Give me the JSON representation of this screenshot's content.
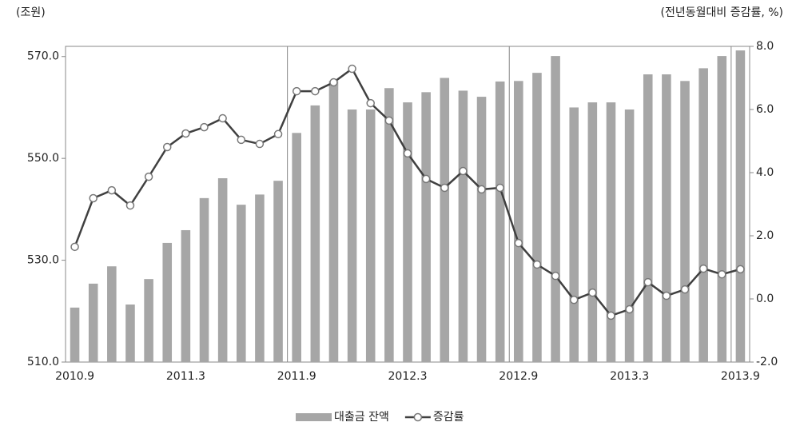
{
  "chart_data": {
    "type": "bar_line",
    "y_unit_label": "(조원)",
    "y2_unit_label": "(전년동월대비 증감률,  %)",
    "categories": [
      "2010.9",
      null,
      null,
      null,
      null,
      null,
      "2011.3",
      null,
      null,
      null,
      null,
      null,
      "2011.9",
      null,
      null,
      null,
      null,
      null,
      "2012.3",
      null,
      null,
      null,
      null,
      null,
      "2012.9",
      null,
      null,
      null,
      null,
      null,
      "2013.3",
      null,
      null,
      null,
      null,
      null,
      "2013.9"
    ],
    "series": [
      {
        "name": "대출금 잔액",
        "type": "bar",
        "color": "#a6a6a6",
        "axis": "y",
        "values": [
          520.7,
          525.4,
          528.8,
          521.3,
          526.3,
          533.4,
          535.9,
          542.2,
          546.1,
          540.9,
          542.9,
          545.6,
          555.0,
          560.4,
          565.2,
          559.6,
          559.6,
          563.8,
          561.0,
          563.0,
          565.8,
          563.3,
          562.1,
          565.1,
          565.2,
          566.8,
          570.1,
          560.0,
          561.0,
          561.0,
          559.6,
          566.5,
          566.5,
          565.2,
          567.7,
          570.1,
          571.2
        ]
      },
      {
        "name": "증감률",
        "type": "line",
        "color": "#404040",
        "axis": "y2",
        "values": [
          1.65,
          3.19,
          3.44,
          2.96,
          3.87,
          4.81,
          5.24,
          5.44,
          5.72,
          5.04,
          4.91,
          5.22,
          6.58,
          6.58,
          6.86,
          7.29,
          6.2,
          5.65,
          4.61,
          3.8,
          3.52,
          4.05,
          3.47,
          3.52,
          1.77,
          1.09,
          0.73,
          -0.03,
          0.2,
          -0.53,
          -0.33,
          0.53,
          0.1,
          0.3,
          0.96,
          0.78,
          0.94
        ]
      }
    ],
    "ylim": [
      510,
      572
    ],
    "yticks": [
      {
        "value": 510,
        "label": "510.0"
      },
      {
        "value": 530,
        "label": "530.0"
      },
      {
        "value": 550,
        "label": "550.0"
      },
      {
        "value": 570,
        "label": "570.0"
      }
    ],
    "y2lim": [
      -2,
      8
    ],
    "y2ticks": [
      {
        "value": -2,
        "label": "-2.0"
      },
      {
        "value": 0,
        "label": "0.0"
      },
      {
        "value": 2,
        "label": "2.0"
      },
      {
        "value": 4,
        "label": "4.0"
      },
      {
        "value": 6,
        "label": "6.0"
      },
      {
        "value": 8,
        "label": "8.0"
      }
    ],
    "grid": false,
    "legend": "bottom"
  }
}
